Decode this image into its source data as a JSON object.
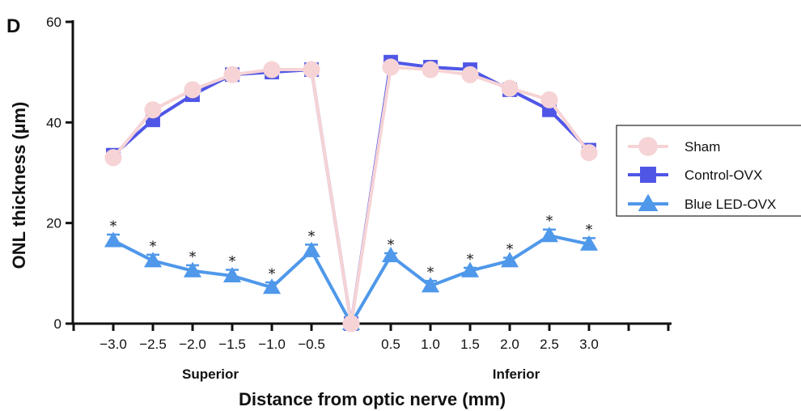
{
  "chart_data": {
    "type": "line",
    "panel_label": "D",
    "xlabel": "Distance from optic nerve (mm)",
    "ylabel": "ONL thickness (µm)",
    "ylim": [
      0,
      60
    ],
    "yticks": [
      0,
      20,
      40,
      60
    ],
    "x_tick_labels": [
      "−3.0",
      "−2.5",
      "−2.0",
      "−1.5",
      "−1.0",
      "−0.5",
      "",
      "0.5",
      "1.0",
      "1.5",
      "2.0",
      "2.5",
      "3.0"
    ],
    "x_group_labels": [
      "Superior",
      "Inferior"
    ],
    "x": [
      -3.0,
      -2.5,
      -2.0,
      -1.5,
      -1.0,
      -0.5,
      0,
      0.5,
      1.0,
      1.5,
      2.0,
      2.5,
      3.0
    ],
    "legend_placement": "right",
    "grid": false,
    "series": [
      {
        "name": "Sham",
        "color": "#f6d3d5",
        "marker": "circle",
        "values": [
          33.0,
          42.5,
          46.5,
          49.5,
          50.5,
          50.5,
          0,
          51.0,
          50.5,
          49.5,
          46.8,
          44.5,
          34.0
        ],
        "errors": [
          0.8,
          0.8,
          0.8,
          0.8,
          0.8,
          0.8,
          0,
          0.8,
          0.8,
          0.8,
          0.8,
          0.8,
          0.8
        ]
      },
      {
        "name": "Control-OVX",
        "color": "#4f56e6",
        "marker": "square",
        "values": [
          33.5,
          40.5,
          45.5,
          49.5,
          50.0,
          50.5,
          0,
          52.0,
          51.0,
          50.5,
          46.5,
          42.5,
          34.5
        ],
        "errors": [
          0.8,
          0.8,
          0.8,
          0.8,
          0.8,
          0.8,
          0,
          0.8,
          0.8,
          0.8,
          0.8,
          0.8,
          0.8
        ]
      },
      {
        "name": "Blue LED-OVX",
        "color": "#4f98ea",
        "marker": "triangle",
        "values": [
          16.5,
          12.5,
          10.5,
          9.5,
          7.2,
          14.5,
          0,
          13.5,
          7.5,
          10.5,
          12.5,
          17.5,
          15.8
        ],
        "errors": [
          1.2,
          1.2,
          1.1,
          1.2,
          1.0,
          1.2,
          0,
          0.5,
          1.0,
          0.6,
          0.6,
          1.2,
          1.2
        ],
        "significance": [
          "*",
          "*",
          "*",
          "*",
          "*",
          "*",
          "",
          "*",
          "*",
          "*",
          "*",
          "*",
          "*"
        ]
      }
    ]
  }
}
